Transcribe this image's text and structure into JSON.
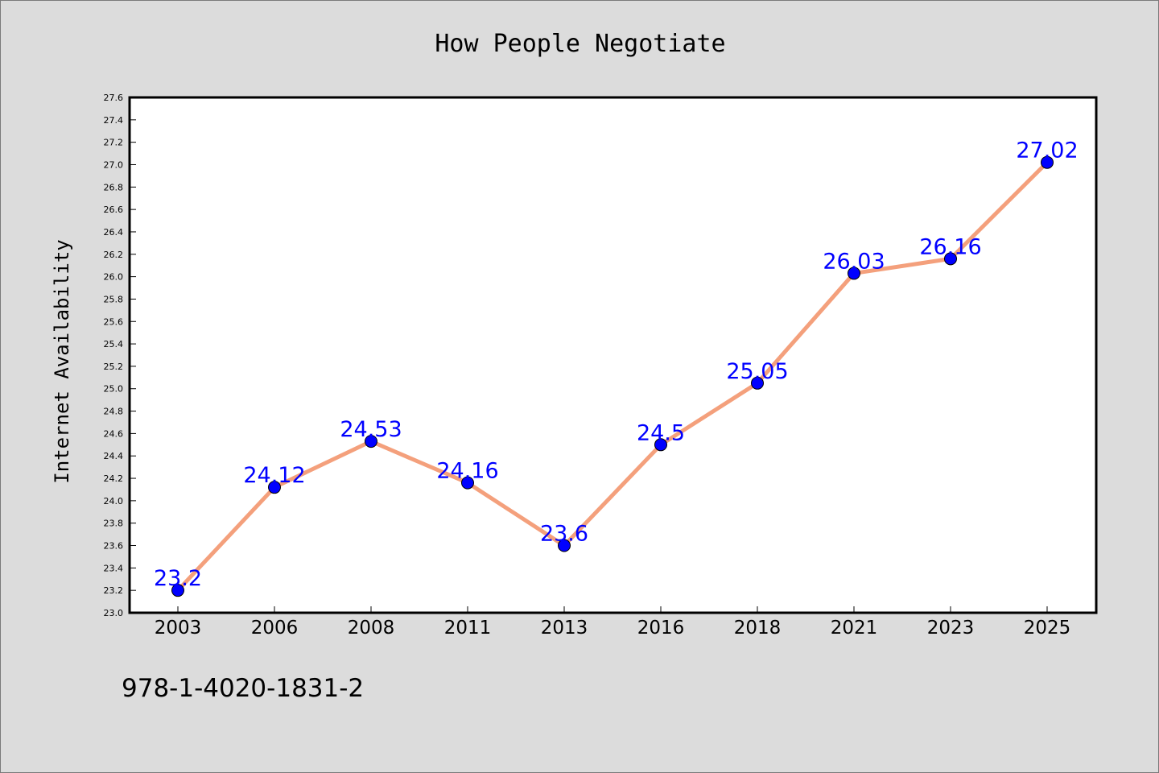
{
  "chart_data": {
    "type": "line",
    "title": "How People Negotiate",
    "xlabel": "",
    "ylabel": "Internet Availability",
    "categories": [
      "2003",
      "2006",
      "2008",
      "2011",
      "2013",
      "2016",
      "2018",
      "2021",
      "2023",
      "2025"
    ],
    "values": [
      23.2,
      24.12,
      24.53,
      24.16,
      23.6,
      24.5,
      25.05,
      26.03,
      26.16,
      27.02
    ],
    "data_labels": [
      "23.2",
      "24.12",
      "24.53",
      "24.16",
      "23.6",
      "24.5",
      "25.05",
      "26.03",
      "26.16",
      "27.02"
    ],
    "ylim": [
      23.0,
      27.6
    ],
    "yticks": [
      "23.0",
      "23.2",
      "23.4",
      "23.6",
      "23.8",
      "24.0",
      "24.2",
      "24.4",
      "24.6",
      "24.8",
      "25.0",
      "25.2",
      "25.4",
      "25.6",
      "25.8",
      "26.0",
      "26.2",
      "26.4",
      "26.6",
      "26.8",
      "27.0",
      "27.2",
      "27.4",
      "27.6"
    ],
    "grid": false,
    "legend": "none",
    "line_color": "#f4a07c",
    "marker_color": "#0000ff",
    "label_color": "#0000ff",
    "background_color": "#dcdcdc",
    "plot_background_color": "#ffffff"
  },
  "footer": {
    "code": "978-1-4020-1831-2"
  }
}
